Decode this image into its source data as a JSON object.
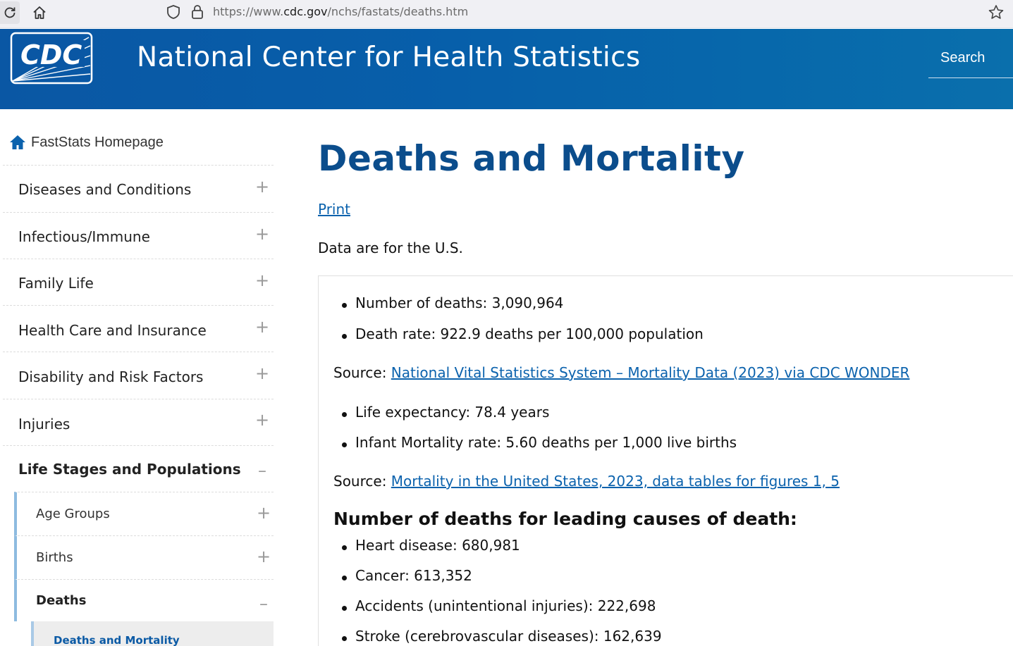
{
  "browser": {
    "url_prefix": "https://www.",
    "url_domain": "cdc.gov",
    "url_path": "/nchs/fastats/deaths.htm"
  },
  "header": {
    "logo_text": "CDC",
    "title": "National Center for Health Statistics",
    "search_label": "Search"
  },
  "sidebar": {
    "home_label": "FastStats Homepage",
    "items": [
      {
        "label": "Diseases and Conditions",
        "toggle": "+"
      },
      {
        "label": "Infectious/Immune",
        "toggle": "+"
      },
      {
        "label": "Family Life",
        "toggle": "+"
      },
      {
        "label": "Health Care and Insurance",
        "toggle": "+"
      },
      {
        "label": "Disability and Risk Factors",
        "toggle": "+"
      },
      {
        "label": "Injuries",
        "toggle": "+"
      },
      {
        "label": "Life Stages and Populations",
        "toggle": "–"
      }
    ],
    "subitems": [
      {
        "label": "Age Groups",
        "toggle": "+"
      },
      {
        "label": "Births",
        "toggle": "+"
      },
      {
        "label": "Deaths",
        "toggle": "–"
      }
    ],
    "active_page": "Deaths and Mortality"
  },
  "main": {
    "title": "Deaths and Mortality",
    "print_label": "Print",
    "intro": "Data are for the U.S.",
    "list1": [
      "Number of deaths: 3,090,964",
      "Death rate: 922.9 deaths per 100,000 population"
    ],
    "source1_prefix": "Source: ",
    "source1_link": "National Vital Statistics System – Mortality Data (2023) via CDC WONDER",
    "list2": [
      "Life expectancy: 78.4 years",
      "Infant Mortality rate: 5.60 deaths per 1,000 live births"
    ],
    "source2_prefix": "Source: ",
    "source2_link": "Mortality in the United States, 2023, data tables for figures 1, 5",
    "causes_heading": "Number of deaths for leading causes of death:",
    "causes": [
      "Heart disease: 680,981",
      "Cancer: 613,352",
      "Accidents (unintentional injuries): 222,698",
      "Stroke (cerebrovascular diseases): 162,639"
    ]
  },
  "colors": {
    "header_blue": "#075faa",
    "title_blue": "#0b4d8c",
    "link_blue": "#0b62ad",
    "sidebar_accent": "#8dbbe0"
  },
  "icons": [
    "reload-icon",
    "home-icon",
    "shield-icon",
    "lock-icon",
    "star-icon",
    "house-icon"
  ]
}
